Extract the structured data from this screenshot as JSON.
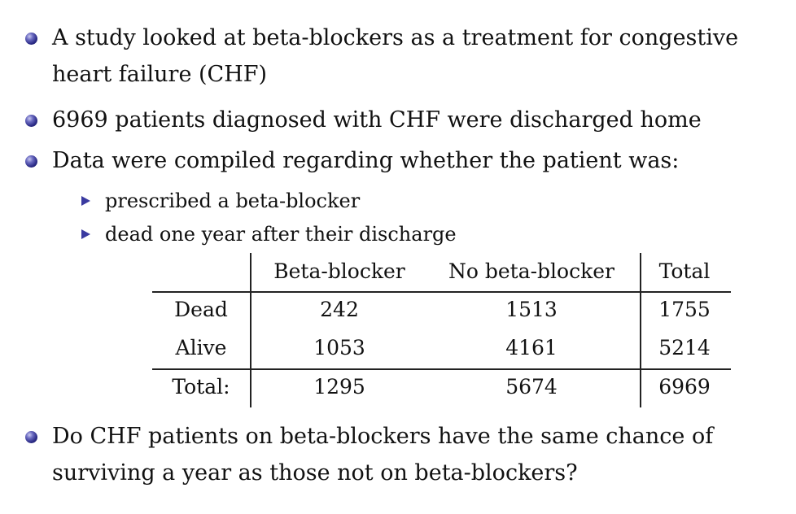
{
  "bullets": [
    {
      "line1": "A study looked at beta-blockers as a treatment for congestive",
      "line2": "heart failure (CHF)"
    },
    {
      "line1": "6969 patients diagnosed with CHF were discharged home"
    },
    {
      "line1": "Data were compiled regarding whether the patient was:"
    },
    {
      "line1": "Do CHF patients on beta-blockers have the same chance of",
      "line2": "surviving a year as those not on beta-blockers?"
    }
  ],
  "sub_bullets": [
    "prescribed a beta-blocker",
    "dead one year after their discharge"
  ],
  "table": {
    "columns": [
      "Beta-blocker",
      "No beta-blocker",
      "Total"
    ],
    "rows": [
      {
        "label": "Dead",
        "values": [
          "242",
          "1513",
          "1755"
        ]
      },
      {
        "label": "Alive",
        "values": [
          "1053",
          "4161",
          "5214"
        ]
      },
      {
        "label": "Total:",
        "values": [
          "1295",
          "5674",
          "6969"
        ]
      }
    ]
  },
  "colors": {
    "bullet": "#2b2b86",
    "text": "#111111"
  },
  "icons": {
    "bullet": "ball-bullet-icon",
    "sub_bullet": "triangle-bullet-icon"
  }
}
